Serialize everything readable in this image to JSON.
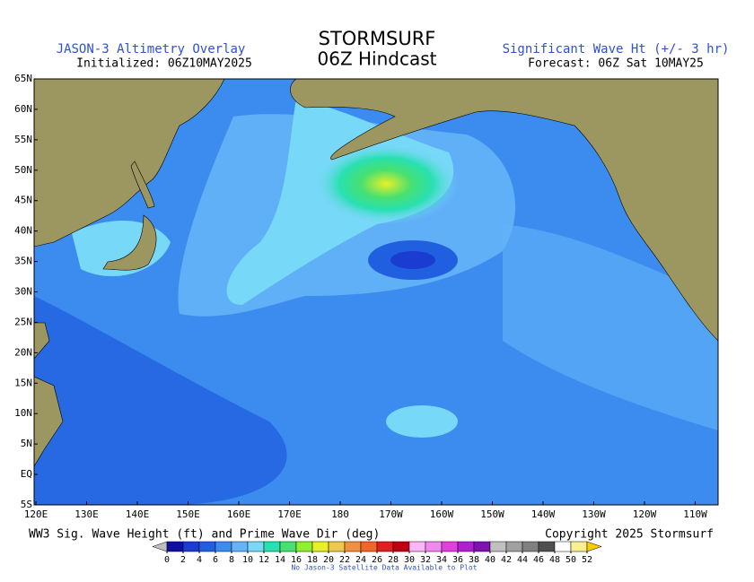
{
  "header": {
    "left_title": "JASON-3 Altimetry Overlay",
    "left_subtitle": "Initialized: 06Z10MAY2025",
    "center_title": "STORMSURF",
    "center_subtitle": "06Z Hindcast",
    "right_title": "Significant Wave Ht (+/- 3 hr)",
    "right_subtitle": "Forecast: 06Z Sat 10MAY25"
  },
  "map": {
    "lat_labels": [
      "65N",
      "60N",
      "55N",
      "50N",
      "45N",
      "40N",
      "35N",
      "30N",
      "25N",
      "20N",
      "15N",
      "10N",
      "5N",
      "EQ",
      "5S"
    ],
    "lon_labels": [
      "120E",
      "130E",
      "140E",
      "150E",
      "160E",
      "170E",
      "180",
      "170W",
      "160W",
      "150W",
      "140W",
      "130W",
      "120W",
      "110W"
    ]
  },
  "footer": {
    "caption": "WW3 Sig. Wave Height (ft) and Prime Wave Dir (deg)",
    "copyright": "Copyright 2025 Stormsurf",
    "note": "No Jason-3 Satellite Data Available to Plot"
  },
  "colorbar": {
    "ticks": [
      0,
      2,
      4,
      6,
      8,
      10,
      12,
      14,
      16,
      18,
      20,
      22,
      24,
      26,
      28,
      30,
      32,
      34,
      36,
      38,
      40,
      42,
      44,
      46,
      48,
      50,
      52
    ],
    "under_color": "#c0c0c0",
    "over_color": "#ffcc00",
    "colors": [
      "#1010a0",
      "#1a3cd0",
      "#2060e0",
      "#3c8cf0",
      "#64b4f8",
      "#78d8f8",
      "#28e0b0",
      "#48e070",
      "#90f030",
      "#e8f028",
      "#f0c850",
      "#f09040",
      "#f06828",
      "#e02020",
      "#c00010",
      "#f8b8f8",
      "#f088f0",
      "#e040e0",
      "#b020d0",
      "#8010b0",
      "#c0c0c0",
      "#a0a0a0",
      "#808080",
      "#505050",
      "#ffffff",
      "#f8f090"
    ]
  }
}
